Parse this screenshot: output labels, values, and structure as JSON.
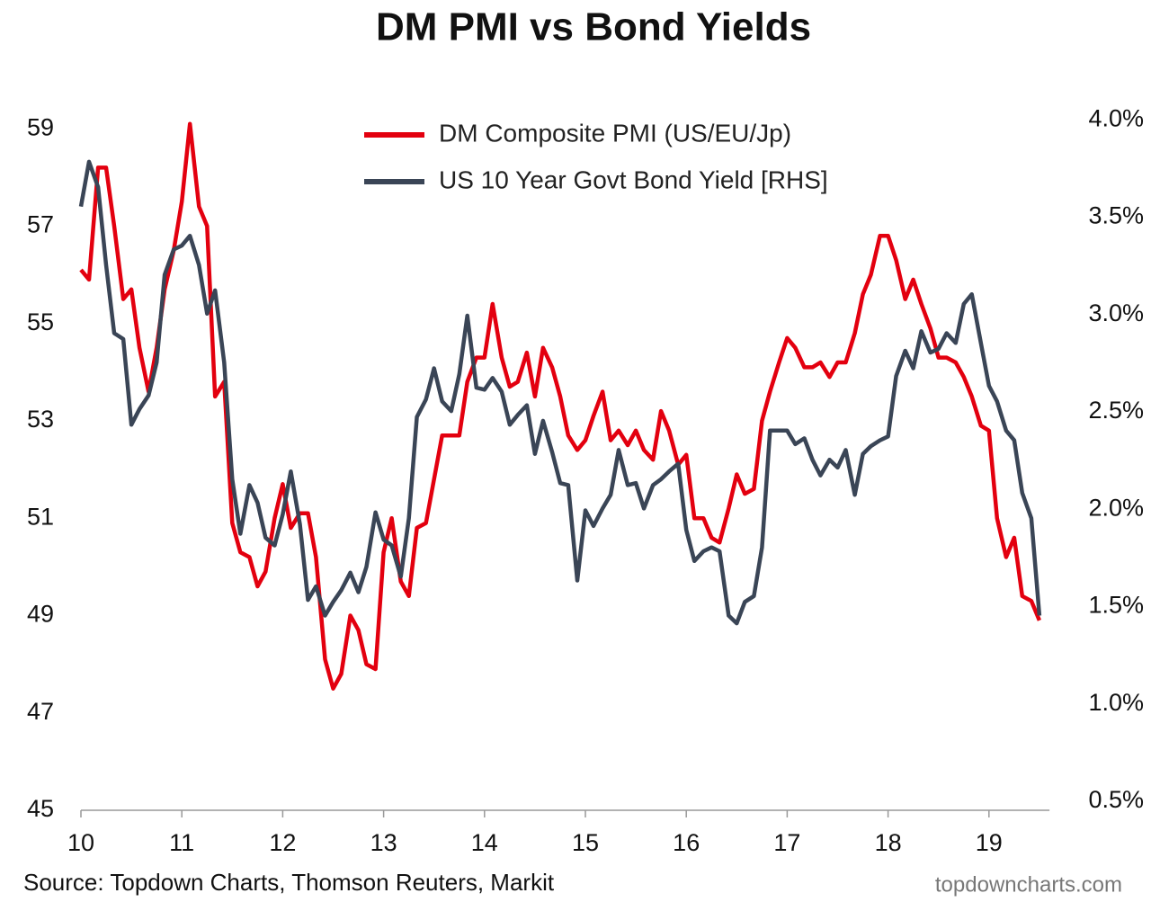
{
  "chart_data": {
    "type": "line",
    "title": "DM PMI vs Bond Yields",
    "source": "Source: Topdown Charts, Thomson Reuters, Markit",
    "watermark": "topdowncharts.com",
    "x": [
      10,
      10.08,
      10.17,
      10.25,
      10.33,
      10.42,
      10.5,
      10.58,
      10.67,
      10.75,
      10.83,
      10.92,
      11,
      11.08,
      11.17,
      11.25,
      11.33,
      11.42,
      11.5,
      11.58,
      11.67,
      11.75,
      11.83,
      11.92,
      12,
      12.08,
      12.17,
      12.25,
      12.33,
      12.42,
      12.5,
      12.58,
      12.67,
      12.75,
      12.83,
      12.92,
      13,
      13.08,
      13.17,
      13.25,
      13.33,
      13.42,
      13.5,
      13.58,
      13.67,
      13.75,
      13.83,
      13.92,
      14,
      14.08,
      14.17,
      14.25,
      14.33,
      14.42,
      14.5,
      14.58,
      14.67,
      14.75,
      14.83,
      14.92,
      15,
      15.08,
      15.17,
      15.25,
      15.33,
      15.42,
      15.5,
      15.58,
      15.67,
      15.75,
      15.83,
      15.92,
      16,
      16.08,
      16.17,
      16.25,
      16.33,
      16.42,
      16.5,
      16.58,
      16.67,
      16.75,
      16.83,
      16.92,
      17,
      17.08,
      17.17,
      17.25,
      17.33,
      17.42,
      17.5,
      17.58,
      17.67,
      17.75,
      17.83,
      17.92,
      18,
      18.08,
      18.17,
      18.25,
      18.33,
      18.42,
      18.5,
      18.58,
      18.67,
      18.75,
      18.83,
      18.92,
      19,
      19.08,
      19.17,
      19.25,
      19.33,
      19.42,
      19.5
    ],
    "series": [
      {
        "name": "DM Composite PMI (US/EU/Jp)",
        "color": "#e3000f",
        "values": [
          56.1,
          55.9,
          58.2,
          58.2,
          57.0,
          55.5,
          55.7,
          54.5,
          53.6,
          54.5,
          55.7,
          56.5,
          57.5,
          59.1,
          57.4,
          57.0,
          53.5,
          53.8,
          50.9,
          50.3,
          50.2,
          49.6,
          49.9,
          51.0,
          51.7,
          50.8,
          51.1,
          51.1,
          50.2,
          48.1,
          47.5,
          47.8,
          49.0,
          48.7,
          48.0,
          47.9,
          50.3,
          51.0,
          49.7,
          49.4,
          50.8,
          50.9,
          51.8,
          52.7,
          52.7,
          52.7,
          53.8,
          54.3,
          54.3,
          55.4,
          54.3,
          53.7,
          53.8,
          54.4,
          53.5,
          54.5,
          54.1,
          53.5,
          52.7,
          52.4,
          52.6,
          53.1,
          53.6,
          52.6,
          52.8,
          52.5,
          52.8,
          52.4,
          52.2,
          53.2,
          52.8,
          52.1,
          52.3,
          51.0,
          51.0,
          50.6,
          50.5,
          51.2,
          51.9,
          51.5,
          51.6,
          53.0,
          53.6,
          54.2,
          54.7,
          54.5,
          54.1,
          54.1,
          54.2,
          53.9,
          54.2,
          54.2,
          54.8,
          55.6,
          56.0,
          56.8,
          56.8,
          56.3,
          55.5,
          55.9,
          55.4,
          54.9,
          54.3,
          54.3,
          54.2,
          53.9,
          53.5,
          52.9,
          52.8,
          51.0,
          50.2,
          50.6,
          49.4,
          49.3,
          48.9
        ]
      },
      {
        "name": "US 10 Year Govt Bond Yield [RHS]",
        "color": "#3a4556",
        "axis": "y2",
        "values": [
          3.6,
          3.83,
          3.7,
          3.3,
          2.95,
          2.92,
          2.48,
          2.56,
          2.63,
          2.8,
          3.25,
          3.38,
          3.4,
          3.45,
          3.3,
          3.05,
          3.17,
          2.8,
          2.2,
          1.92,
          2.17,
          2.08,
          1.9,
          1.86,
          2.02,
          2.24,
          1.97,
          1.58,
          1.65,
          1.5,
          1.57,
          1.63,
          1.72,
          1.62,
          1.75,
          2.03,
          1.89,
          1.86,
          1.7,
          2.0,
          2.52,
          2.61,
          2.77,
          2.6,
          2.55,
          2.74,
          3.04,
          2.67,
          2.66,
          2.72,
          2.65,
          2.48,
          2.53,
          2.58,
          2.33,
          2.5,
          2.34,
          2.18,
          2.17,
          1.68,
          2.04,
          1.96,
          2.05,
          2.12,
          2.35,
          2.17,
          2.18,
          2.05,
          2.17,
          2.2,
          2.24,
          2.28,
          1.94,
          1.78,
          1.83,
          1.85,
          1.83,
          1.5,
          1.46,
          1.57,
          1.6,
          1.85,
          2.45,
          2.45,
          2.45,
          2.38,
          2.41,
          2.3,
          2.22,
          2.3,
          2.26,
          2.35,
          2.12,
          2.33,
          2.37,
          2.4,
          2.42,
          2.73,
          2.86,
          2.77,
          2.96,
          2.85,
          2.87,
          2.95,
          2.9,
          3.1,
          3.15,
          2.9,
          2.68,
          2.6,
          2.45,
          2.4,
          2.13,
          2.0,
          1.5
        ]
      }
    ],
    "xlim": [
      10,
      19.6
    ],
    "xticks": [
      10,
      11,
      12,
      13,
      14,
      15,
      16,
      17,
      18,
      19
    ],
    "ylim": [
      45,
      60
    ],
    "yticks": [
      45,
      47,
      49,
      51,
      53,
      55,
      57,
      59
    ],
    "y2lim": [
      0.5,
      4.25
    ],
    "y2ticks": [
      {
        "value": 0.5,
        "label": "0.5%"
      },
      {
        "value": 1.0,
        "label": "1.0%"
      },
      {
        "value": 1.5,
        "label": "1.5%"
      },
      {
        "value": 2.0,
        "label": "2.0%"
      },
      {
        "value": 2.5,
        "label": "2.5%"
      },
      {
        "value": 3.0,
        "label": "3.0%"
      },
      {
        "value": 3.5,
        "label": "3.5%"
      },
      {
        "value": 4.0,
        "label": "4.0%"
      }
    ],
    "grid": false,
    "legend": "top"
  }
}
